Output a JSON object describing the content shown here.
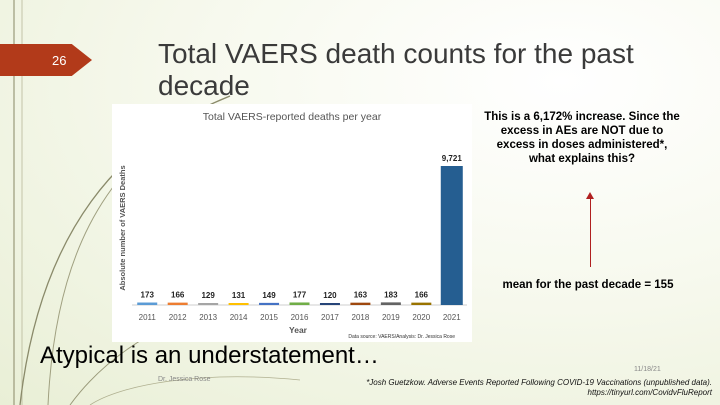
{
  "slide": {
    "number": "26",
    "title": "Total VAERS death counts for the past decade",
    "callout": "This is a 6,172% increase. Since the excess in AEs are NOT due to excess in doses administered*, what explains this?",
    "mean_note": "mean for the past decade = 155",
    "tagline": "Atypical is an understatement…",
    "author": "Dr. Jessica Rose",
    "date": "11/18/21",
    "footnote_line1": "*Josh Guetzkow. Adverse Events Reported Following COVID-19 Vaccinations (unpublished data).",
    "footnote_line2": "https://tinyurl.com/CovidvFluReport"
  },
  "chart_data": {
    "type": "bar",
    "title": "Total VAERS-reported deaths per year",
    "xlabel": "Year",
    "ylabel": "Absolute number of VAERS Deaths",
    "source": "Data source: VAERS/Analysis: Dr. Jessica Rose",
    "categories": [
      "2011",
      "2012",
      "2013",
      "2014",
      "2015",
      "2016",
      "2017",
      "2018",
      "2019",
      "2020",
      "2021"
    ],
    "values": [
      173,
      166,
      129,
      131,
      149,
      177,
      120,
      163,
      183,
      166,
      9721
    ],
    "value_labels": [
      "173",
      "166",
      "129",
      "131",
      "149",
      "177",
      "120",
      "163",
      "183",
      "166",
      "9,721"
    ],
    "colors": [
      "#5b9bd5",
      "#ed7d31",
      "#a5a5a5",
      "#ffc000",
      "#4472c4",
      "#70ad47",
      "#264478",
      "#9e480e",
      "#636363",
      "#997300",
      "#255e91"
    ],
    "ylim": [
      0,
      10000
    ],
    "grid": false,
    "legend": "none"
  }
}
